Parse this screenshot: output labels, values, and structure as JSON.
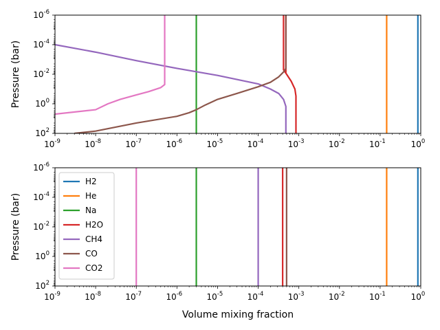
{
  "chart_data": [
    {
      "type": "line",
      "title": "",
      "xlabel": "",
      "ylabel": "Pressure (bar)",
      "xscale": "log",
      "yscale": "log",
      "y_inverted": true,
      "xlim": [
        1e-09,
        1
      ],
      "ylim": [
        100,
        1e-06
      ],
      "x_ticks": [
        "10",
        "10",
        "10",
        "10",
        "10",
        "10",
        "10",
        "10",
        "10",
        "10"
      ],
      "x_tick_exps": [
        "-9",
        "-8",
        "-7",
        "-6",
        "-5",
        "-4",
        "-3",
        "-2",
        "-1",
        "0"
      ],
      "y_ticks": [
        "10",
        "10",
        "10",
        "10",
        "10"
      ],
      "y_tick_exps": [
        "-6",
        "-4",
        "-2",
        "0",
        "2"
      ],
      "grid": false,
      "legend": "none",
      "series": [
        {
          "color": "#1f77b4",
          "points": [
            [
              0.85,
              1e-06
            ],
            [
              0.85,
              100
            ]
          ]
        },
        {
          "color": "#ff7f0e",
          "points": [
            [
              0.145,
              1e-06
            ],
            [
              0.145,
              100
            ]
          ]
        },
        {
          "color": "#2ca02c",
          "points": [
            [
              3e-06,
              1e-06
            ],
            [
              3e-06,
              100
            ]
          ]
        },
        {
          "color": "#d62728",
          "points": [
            [
              0.00042,
              1e-06
            ],
            [
              0.00042,
              0.005
            ],
            [
              0.0005,
              0.01
            ],
            [
              0.00065,
              0.03
            ],
            [
              0.0008,
              0.1
            ],
            [
              0.00085,
              0.3
            ],
            [
              0.00085,
              100
            ]
          ]
        },
        {
          "color": "#d62728",
          "points": [
            [
              0.00048,
              1e-06
            ],
            [
              0.00048,
              0.008
            ]
          ]
        },
        {
          "color": "#9467bd",
          "points": [
            [
              1e-09,
              0.0001
            ],
            [
              1e-08,
              0.00032
            ],
            [
              1e-07,
              0.0012
            ],
            [
              1e-06,
              0.004
            ],
            [
              1e-05,
              0.012
            ],
            [
              0.0001,
              0.045
            ],
            [
              0.0002,
              0.1
            ],
            [
              0.00032,
              0.2
            ],
            [
              0.00042,
              0.5
            ],
            [
              0.00048,
              1.5
            ],
            [
              0.00048,
              100
            ]
          ]
        },
        {
          "color": "#8c564b",
          "points": [
            [
              3e-09,
              100
            ],
            [
              1e-08,
              70
            ],
            [
              1e-07,
              20
            ],
            [
              1e-06,
              7
            ],
            [
              2e-06,
              4
            ],
            [
              3e-06,
              2.5
            ],
            [
              5e-06,
              1.2
            ],
            [
              1e-05,
              0.5
            ],
            [
              3e-05,
              0.2
            ],
            [
              0.0001,
              0.07
            ],
            [
              0.0002,
              0.035
            ],
            [
              0.00032,
              0.015
            ],
            [
              0.00042,
              0.007
            ],
            [
              0.00048,
              0.004
            ],
            [
              0.00048,
              1e-06
            ]
          ]
        },
        {
          "color": "#e377c2",
          "points": [
            [
              1e-09,
              5
            ],
            [
              1e-08,
              2.5
            ],
            [
              2e-08,
              1
            ],
            [
              4e-08,
              0.5
            ],
            [
              1e-07,
              0.25
            ],
            [
              2e-07,
              0.15
            ],
            [
              4e-07,
              0.08
            ],
            [
              5e-07,
              0.05
            ],
            [
              5e-07,
              1e-06
            ]
          ]
        }
      ]
    },
    {
      "type": "line",
      "title": "",
      "xlabel": "Volume mixing fraction",
      "ylabel": "Pressure (bar)",
      "xscale": "log",
      "yscale": "log",
      "y_inverted": true,
      "xlim": [
        1e-09,
        1
      ],
      "ylim": [
        100,
        1e-06
      ],
      "x_ticks": [
        "10",
        "10",
        "10",
        "10",
        "10",
        "10",
        "10",
        "10",
        "10",
        "10"
      ],
      "x_tick_exps": [
        "-9",
        "-8",
        "-7",
        "-6",
        "-5",
        "-4",
        "-3",
        "-2",
        "-1",
        "0"
      ],
      "y_ticks": [
        "10",
        "10",
        "10",
        "10",
        "10"
      ],
      "y_tick_exps": [
        "-6",
        "-4",
        "-2",
        "0",
        "2"
      ],
      "grid": false,
      "legend": "upper-left",
      "series": [
        {
          "name": "H2",
          "color": "#1f77b4",
          "points": [
            [
              0.85,
              1e-06
            ],
            [
              0.85,
              100
            ]
          ]
        },
        {
          "name": "He",
          "color": "#ff7f0e",
          "points": [
            [
              0.145,
              1e-06
            ],
            [
              0.145,
              100
            ]
          ]
        },
        {
          "name": "Na",
          "color": "#2ca02c",
          "points": [
            [
              3e-06,
              1e-06
            ],
            [
              3e-06,
              100
            ]
          ]
        },
        {
          "name": "H2O",
          "color": "#d62728",
          "points": [
            [
              0.0004,
              1e-06
            ],
            [
              0.0004,
              100
            ]
          ]
        },
        {
          "name": "CH4",
          "color": "#9467bd",
          "points": [
            [
              0.0001,
              1e-06
            ],
            [
              0.0001,
              100
            ]
          ]
        },
        {
          "name": "CO",
          "color": "#8c564b",
          "points": [
            [
              0.0005,
              1e-06
            ],
            [
              0.0005,
              100
            ]
          ]
        },
        {
          "name": "CO2",
          "color": "#e377c2",
          "points": [
            [
              1e-07,
              1e-06
            ],
            [
              1e-07,
              100
            ]
          ]
        }
      ]
    }
  ]
}
